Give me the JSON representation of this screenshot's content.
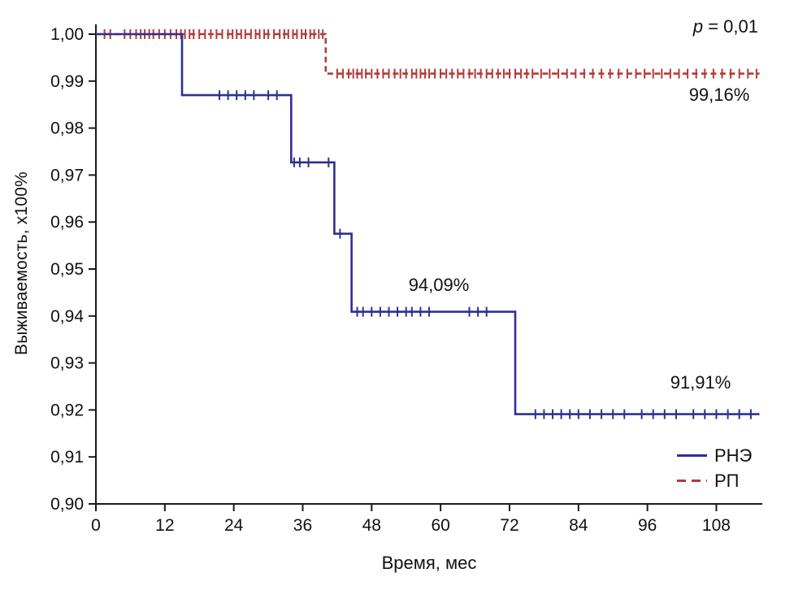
{
  "chart_data": {
    "type": "line",
    "subtype": "kaplan-meier-step",
    "title": "",
    "xlabel": "Время, мес",
    "ylabel": "Выживаемость, x100%",
    "xlim": [
      0,
      116
    ],
    "ylim": [
      0.9,
      1.0
    ],
    "x_ticks": [
      0,
      12,
      24,
      36,
      48,
      60,
      72,
      84,
      96,
      108
    ],
    "y_ticks": [
      {
        "value": 1.0,
        "label": "1,00"
      },
      {
        "value": 0.99,
        "label": "0,99"
      },
      {
        "value": 0.98,
        "label": "0,98"
      },
      {
        "value": 0.97,
        "label": "0,97"
      },
      {
        "value": 0.96,
        "label": "0,96"
      },
      {
        "value": 0.95,
        "label": "0,95"
      },
      {
        "value": 0.94,
        "label": "0,94"
      },
      {
        "value": 0.93,
        "label": "0,93"
      },
      {
        "value": 0.92,
        "label": "0,92"
      },
      {
        "value": 0.91,
        "label": "0,91"
      },
      {
        "value": 0.9,
        "label": "0,90"
      }
    ],
    "grid": false,
    "axis_color": "#1a1a1a",
    "p_label": {
      "italic": "p",
      "rest": " = 0,01"
    },
    "series": [
      {
        "name": "РНЭ",
        "slug": "rne",
        "color": "#2e3192",
        "line_style": "solid",
        "steps": [
          [
            0,
            1.0
          ],
          [
            15,
            1.0
          ],
          [
            15,
            0.987
          ],
          [
            34,
            0.987
          ],
          [
            34,
            0.9727
          ],
          [
            41.5,
            0.9727
          ],
          [
            41.5,
            0.9575
          ],
          [
            44.5,
            0.9575
          ],
          [
            44.5,
            0.9409
          ],
          [
            73,
            0.9409
          ],
          [
            73,
            0.9191
          ],
          [
            115.5,
            0.9191
          ]
        ],
        "censors": [
          {
            "y": 0.987,
            "x": [
              21.5,
              23,
              24.5,
              26,
              27.5,
              30,
              31.5
            ]
          },
          {
            "y": 0.9727,
            "x": [
              34.5,
              35.5,
              37,
              40.5
            ]
          },
          {
            "y": 0.9575,
            "x": [
              42.5
            ]
          },
          {
            "y": 0.9409,
            "x": [
              45.5,
              46.5,
              48,
              49.5,
              51,
              52.5,
              54,
              55,
              56.5,
              58,
              65,
              66.5,
              68
            ]
          },
          {
            "y": 0.9191,
            "x": [
              76.5,
              78,
              79.5,
              81,
              82.5,
              84,
              86,
              88,
              90,
              92,
              95,
              97,
              99,
              101,
              104,
              106,
              108,
              110,
              112,
              114
            ]
          }
        ]
      },
      {
        "name": "РП",
        "slug": "rp",
        "color": "#b23b3b",
        "line_style": "dashed",
        "steps": [
          [
            0,
            1.0
          ],
          [
            40,
            1.0
          ],
          [
            40,
            0.9916
          ],
          [
            115.5,
            0.9916
          ]
        ],
        "censors": [
          {
            "y": 1.0,
            "x": [
              1.5,
              2.5,
              5,
              6,
              7,
              7.8,
              8.5,
              9.3,
              10,
              11,
              12,
              13,
              14,
              14.8,
              15.5,
              16.3,
              17,
              18,
              19,
              20,
              21,
              22,
              23,
              23.8,
              24.5,
              25.3,
              26,
              27,
              27.8,
              28.5,
              29.3,
              30,
              31,
              32,
              32.8,
              33.5,
              34.3,
              35,
              35.8,
              36.5,
              37.3,
              38,
              38.8,
              39.5
            ]
          },
          {
            "y": 0.9916,
            "x": [
              42,
              43,
              44,
              44.8,
              45.5,
              46.3,
              47,
              48,
              49,
              50,
              51,
              52,
              53,
              54,
              55,
              55.8,
              56.5,
              57.3,
              58,
              59,
              60,
              61,
              62,
              63,
              64,
              65,
              66,
              67,
              68,
              69,
              70,
              71,
              72,
              73,
              74,
              75,
              76,
              77.5,
              79,
              80.5,
              82,
              83.5,
              85,
              86.5,
              88,
              89.5,
              91,
              92.5,
              94,
              95.5,
              97,
              98.5,
              100,
              101.5,
              103,
              104.5,
              106,
              107.5,
              109,
              110.5,
              112,
              113.5,
              115
            ]
          }
        ]
      }
    ],
    "annotations": [
      {
        "text": "99,16%",
        "series": "РП"
      },
      {
        "text": "94,09%",
        "series": "РНЭ"
      },
      {
        "text": "91,91%",
        "series": "РНЭ"
      }
    ],
    "legend": {
      "position": "bottom-right"
    }
  }
}
